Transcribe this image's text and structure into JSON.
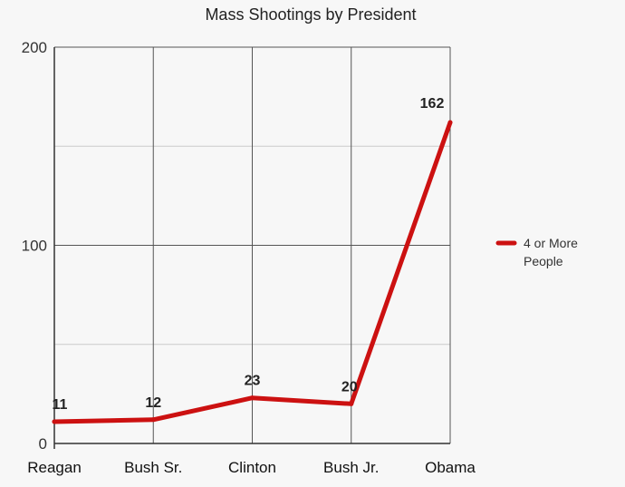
{
  "chart_data": {
    "type": "line",
    "title": "Mass Shootings by President",
    "xlabel": "",
    "ylabel": "",
    "categories": [
      "Reagan",
      "Bush Sr.",
      "Clinton",
      "Bush Jr.",
      "Obama"
    ],
    "series": [
      {
        "name": "4 or More People",
        "values": [
          11,
          12,
          23,
          20,
          162
        ]
      }
    ],
    "data_labels": [
      "11",
      "12",
      "23",
      "20",
      "162"
    ],
    "ylim": [
      0,
      200
    ],
    "y_ticks": [
      "0",
      "100",
      "200"
    ],
    "grid": true,
    "legend_position": "right",
    "colors": {
      "series": "#cc1111",
      "grid": "#555555",
      "minor_grid": "#cccccc"
    }
  }
}
